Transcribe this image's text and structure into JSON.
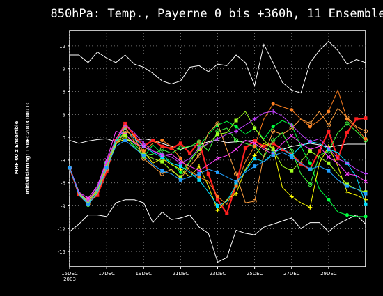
{
  "chart_data": {
    "type": "line",
    "title": "850hPa: Temp., Payerne 0 bis +360h, 11 Ensemble",
    "side_label_1": "MRF 00 z Ensemble",
    "side_label_2": "Initialisierung: 15DEC2003   00UTC",
    "x_tick_labels": [
      "15DEC",
      "17DEC",
      "19DEC",
      "21DEC",
      "23DEC",
      "25DEC",
      "27DEC",
      "29DEC"
    ],
    "x_tick_values": [
      0,
      2,
      4,
      6,
      8,
      10,
      12,
      14
    ],
    "x_sublabel": "2003",
    "xlim": [
      0,
      16
    ],
    "ylim": [
      -17,
      14
    ],
    "y_ticks": [
      12,
      9,
      6,
      3,
      0,
      -3,
      -6,
      -9,
      -12,
      -15
    ],
    "grid": true,
    "background": "#000000",
    "x": [
      0,
      0.5,
      1,
      1.5,
      2,
      2.5,
      3,
      3.5,
      4,
      4.5,
      5,
      5.5,
      6,
      6.5,
      7,
      7.5,
      8,
      8.5,
      9,
      9.5,
      10,
      10.5,
      11,
      11.5,
      12,
      12.5,
      13,
      13.5,
      14,
      14.5,
      15,
      15.5,
      16
    ],
    "envelope": [
      {
        "name": "max",
        "color": "#ffffff",
        "values": [
          10.8,
          10.8,
          9.8,
          11.2,
          10.4,
          9.8,
          10.8,
          9.6,
          9.2,
          8.4,
          7.4,
          7.0,
          7.4,
          9.2,
          9.4,
          8.6,
          9.6,
          9.4,
          10.8,
          9.8,
          6.8,
          12.2,
          9.8,
          7.2,
          6.2,
          5.8,
          9.8,
          11.4,
          12.6,
          11.4,
          9.6,
          10.2,
          9.8
        ]
      },
      {
        "name": "min",
        "color": "#ffffff",
        "values": [
          -12.4,
          -11.4,
          -10.2,
          -10.2,
          -10.4,
          -8.6,
          -8.2,
          -8.2,
          -8.6,
          -11.2,
          -9.8,
          -10.8,
          -10.6,
          -10.2,
          -11.8,
          -12.6,
          -16.4,
          -15.8,
          -12.2,
          -12.6,
          -12.8,
          -11.8,
          -11.4,
          -11.0,
          -10.6,
          -12.0,
          -11.2,
          -11.2,
          -12.4,
          -11.4,
          -10.8,
          -10.2,
          -11.4
        ]
      },
      {
        "name": "mean",
        "color": "#ffffff",
        "values": [
          -0.4,
          -0.8,
          -0.5,
          -0.3,
          -0.2,
          -0.6,
          -0.4,
          -0.5,
          -0.2,
          -0.4,
          -0.8,
          -1.2,
          -1.6,
          -1.2,
          -1.0,
          -0.6,
          -0.4,
          -0.7,
          -0.6,
          -0.5,
          -0.4,
          -1.4,
          -1.8,
          -1.6,
          -1.2,
          -1.0,
          -0.8,
          -1.0,
          -1.3,
          -1.1,
          -0.9,
          -0.9,
          -0.9
        ]
      }
    ],
    "series": [
      {
        "color": "#ff2020",
        "values": [
          -4,
          -7.5,
          -8.5,
          -7.6,
          -4.5,
          -0.5,
          1.8,
          0.2,
          -1.2,
          -0.4,
          -1.2,
          -1.5,
          -0.8,
          -2.1,
          -0.6,
          -4.8,
          -8.2,
          -10.0,
          -6.2,
          -1.4,
          -0.5,
          -1.2,
          -0.8,
          -1.6,
          -2.2,
          -3.5,
          -4.2,
          -1.8,
          0.8,
          -2.8,
          0.6,
          2.4,
          2.5
        ]
      },
      {
        "color": "#00ff40",
        "values": [
          -4,
          -7.2,
          -8.9,
          -7.2,
          -3.8,
          -0.4,
          0.6,
          -1.2,
          -2.6,
          -1.0,
          -2.2,
          -3.4,
          -4.6,
          -3.2,
          -1.2,
          0.4,
          1.6,
          2.1,
          1.4,
          0.4,
          1.2,
          -0.2,
          1.4,
          2.2,
          1.6,
          -1.2,
          -3.4,
          -6.8,
          -8.2,
          -9.8,
          -10.2,
          -10.4,
          -10.4
        ]
      },
      {
        "color": "#ffff00",
        "values": [
          -4,
          -7.5,
          -8.2,
          -6.8,
          -3.4,
          -0.8,
          -0.2,
          -0.6,
          -1.8,
          -3.4,
          -2.8,
          -3.6,
          -4.2,
          -5.2,
          -3.8,
          -6.4,
          -9.6,
          -8.2,
          -7.4,
          -4.2,
          -2.4,
          -0.8,
          -1.4,
          -6.6,
          -7.8,
          -8.6,
          -9.2,
          -3.4,
          -1.2,
          -3.8,
          -7.2,
          -7.6,
          -8.2
        ]
      },
      {
        "color": "#40ff40",
        "values": [
          -4,
          -7.1,
          -8.6,
          -6.9,
          -3.3,
          -0.6,
          0.4,
          -0.8,
          -2.4,
          -2.2,
          -1.6,
          -2.1,
          -1.4,
          -1.2,
          -0.6,
          -1.8,
          0.8,
          1.2,
          -0.4,
          -0.8,
          -1.2,
          -2.6,
          -0.4,
          0.6,
          -1.8,
          -4.8,
          -6.2,
          -2.4,
          -1.8,
          0.6,
          1.8,
          0.8,
          -0.4
        ]
      },
      {
        "color": "#00e0ff",
        "values": [
          -4,
          -7.4,
          -8.7,
          -6.8,
          -3.5,
          -0.6,
          1.2,
          -0.2,
          -1.2,
          -2.0,
          -2.6,
          -3.4,
          -3.8,
          -4.6,
          -5.6,
          -7.2,
          -9.0,
          -8.4,
          -6.2,
          -4.4,
          -2.8,
          -3.2,
          -2.1,
          -1.4,
          -2.4,
          -1.2,
          -0.6,
          -0.8,
          -1.6,
          -2.0,
          -3.4,
          -5.2,
          -8.8
        ]
      },
      {
        "color": "#ff8020",
        "values": [
          -4,
          -7.3,
          -8.3,
          -7.0,
          -3.6,
          -0.2,
          1.4,
          -0.6,
          -1.8,
          -0.8,
          -0.4,
          -1.2,
          -2.8,
          -4.4,
          -5.2,
          -5.8,
          -7.8,
          -8.8,
          -6.4,
          -3.2,
          -1.2,
          2.4,
          4.4,
          4.0,
          3.6,
          2.4,
          1.4,
          2.2,
          3.4,
          6.2,
          2.4,
          1.2,
          -0.2
        ]
      },
      {
        "color": "#ff40ff",
        "values": [
          -4,
          -7.2,
          -8.0,
          -6.4,
          -3.0,
          0.8,
          0.4,
          -0.8,
          -1.2,
          -1.8,
          -2.4,
          -2.2,
          -3.2,
          -3.8,
          -4.4,
          -3.6,
          -2.8,
          -2.4,
          -1.6,
          -0.4,
          -0.8,
          -1.6,
          -2.2,
          -0.8,
          0.2,
          -0.8,
          -1.6,
          -1.2,
          -2.6,
          -3.4,
          -4.8,
          -5.0,
          -5.8
        ]
      },
      {
        "color": "#ffa040",
        "values": [
          -4,
          -7.6,
          -8.8,
          -7.4,
          -4.2,
          -1.0,
          0.8,
          0.2,
          -2.8,
          -3.8,
          -4.8,
          -4.2,
          -5.4,
          -3.8,
          -2.4,
          0.6,
          1.8,
          -1.6,
          -4.8,
          -8.6,
          -8.4,
          -2.4,
          0.8,
          0.4,
          1.2,
          2.4,
          1.8,
          3.4,
          1.6,
          3.8,
          2.6,
          1.4,
          0.8
        ]
      },
      {
        "color": "#a0ff20",
        "values": [
          -4,
          -7.4,
          -8.5,
          -7.1,
          -3.9,
          -0.9,
          0.2,
          -1.4,
          -2.2,
          -2.8,
          -3.2,
          -4.4,
          -5.2,
          -3.2,
          -1.6,
          -0.8,
          0.4,
          0.6,
          2.2,
          3.4,
          1.2,
          -0.4,
          -1.6,
          -3.8,
          -4.4,
          -3.2,
          -1.8,
          -2.6,
          -3.4,
          -4.8,
          -6.2,
          -6.8,
          -7.2
        ]
      },
      {
        "color": "#c040ff",
        "values": [
          -4,
          -7.2,
          -8.4,
          -6.6,
          -3.2,
          -0.2,
          1.6,
          0.6,
          -0.8,
          -1.8,
          -2.2,
          -2.6,
          -3.4,
          -2.8,
          -1.4,
          -0.8,
          -0.2,
          0.4,
          0.8,
          1.6,
          2.4,
          3.2,
          3.4,
          2.8,
          1.6,
          0.4,
          -0.6,
          -0.2,
          -1.4,
          -2.8,
          -3.4,
          -4.2,
          -4.8
        ]
      },
      {
        "color": "#20a0ff",
        "values": [
          -4,
          -7.5,
          -8.8,
          -7.3,
          -4.0,
          -1.2,
          -0.4,
          -1.4,
          -2.4,
          -3.6,
          -4.4,
          -4.8,
          -5.6,
          -5.2,
          -4.8,
          -4.2,
          -4.6,
          -5.2,
          -5.8,
          -4.6,
          -3.8,
          -3.2,
          -2.4,
          -2.0,
          -2.6,
          -3.4,
          -4.2,
          -3.8,
          -4.4,
          -5.6,
          -6.4,
          -6.8,
          -7.4
        ]
      }
    ]
  }
}
